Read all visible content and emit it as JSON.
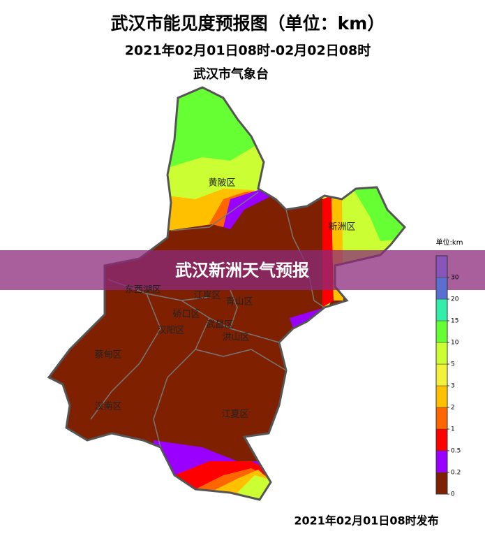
{
  "title": "武汉市能见度预报图（单位：km）",
  "subtitle": "2021年02月01日08时-02月02日08时",
  "issuer": "武汉市气象台",
  "banner": "武汉新洲天气预报",
  "districts": [
    "黄陂区",
    "新洲区",
    "东西湖区",
    "江岸区",
    "青山区",
    "硚口区",
    "汉阳区",
    "武昌区",
    "洪山区",
    "蔡甸区",
    "汉南区",
    "江夏区"
  ],
  "legend": {
    "title": "单位:km",
    "ticks": [
      0,
      0.2,
      0.5,
      1,
      2,
      3,
      5,
      10,
      15,
      20,
      30
    ],
    "colors": [
      "#7f2100",
      "#9900ff",
      "#ff0000",
      "#ff6600",
      "#ffc000",
      "#f2f23a",
      "#ccff33",
      "#66ff33",
      "#33eeaa",
      "#5a6fd0",
      "#8a55bb"
    ]
  },
  "footer": "2021年02月01日08时发布"
}
